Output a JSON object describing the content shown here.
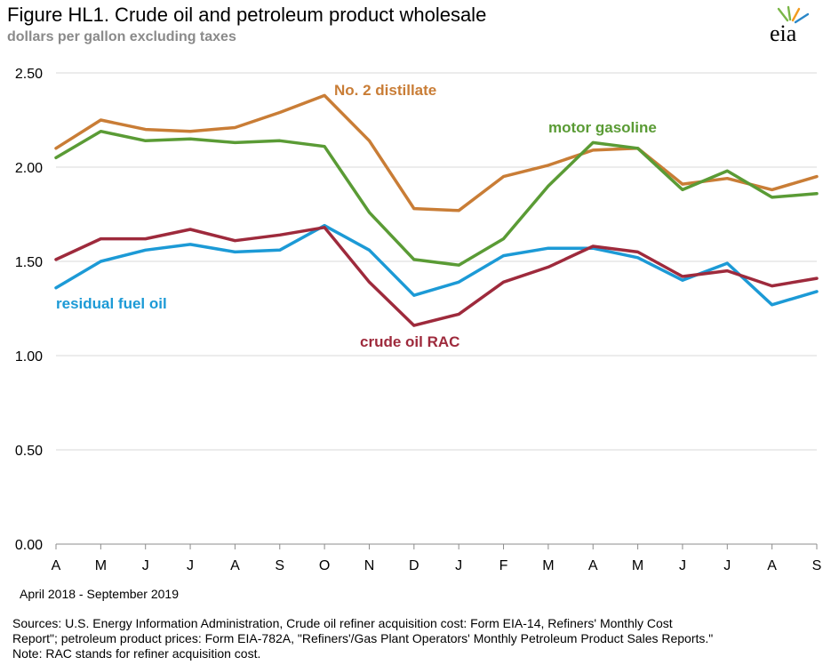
{
  "title": "Figure HL1.  Crude oil and petroleum product wholesale",
  "subtitle": "dollars per gallon excluding taxes",
  "logo_text": "eia",
  "period": "April 2018 - September 2019",
  "sources": [
    "Sources:  U.S. Energy Information Administration, Crude oil refiner acquisition cost:  Form EIA-14, Refiners' Monthly  Cost",
    "Report\"; petroleum product prices:  Form EIA-782A, \"Refiners'/Gas Plant Operators' Monthly  Petroleum Product Sales Reports.\"",
    "Note:  RAC stands for refiner acquisition cost."
  ],
  "colors": {
    "distillate": "#c97d36",
    "gasoline": "#5a9b35",
    "residual": "#1c9ad6",
    "crude": "#9e2a3c",
    "grid": "#d9d9d9",
    "axis": "#8c8c8c",
    "logo_green": "#7ab648",
    "logo_orange": "#f29c1f",
    "logo_blue": "#2a87c8"
  },
  "chart_data": {
    "type": "line",
    "title": "Figure HL1.  Crude oil and petroleum product wholesale",
    "ylabel": "dollars per gallon excluding taxes",
    "xlabel": "",
    "ylim": [
      0,
      2.5
    ],
    "yticks": [
      "0.00",
      "0.50",
      "1.00",
      "1.50",
      "2.00",
      "2.50"
    ],
    "categories": [
      "A",
      "M",
      "J",
      "J",
      "A",
      "S",
      "O",
      "N",
      "D",
      "J",
      "F",
      "M",
      "A",
      "M",
      "J",
      "J",
      "A",
      "S"
    ],
    "grid": true,
    "series": [
      {
        "name": "No. 2 distillate",
        "color_key": "distillate",
        "values": [
          2.1,
          2.25,
          2.2,
          2.19,
          2.21,
          2.29,
          2.38,
          2.14,
          1.78,
          1.77,
          1.95,
          2.01,
          2.09,
          2.1,
          1.91,
          1.94,
          1.88,
          1.95
        ]
      },
      {
        "name": "motor gasoline",
        "color_key": "gasoline",
        "values": [
          2.05,
          2.19,
          2.14,
          2.15,
          2.13,
          2.14,
          2.11,
          1.76,
          1.51,
          1.48,
          1.62,
          1.9,
          2.13,
          2.1,
          1.88,
          1.98,
          1.84,
          1.86
        ]
      },
      {
        "name": "residual fuel oil",
        "color_key": "residual",
        "values": [
          1.36,
          1.5,
          1.56,
          1.59,
          1.55,
          1.56,
          1.69,
          1.56,
          1.32,
          1.39,
          1.53,
          1.57,
          1.57,
          1.52,
          1.4,
          1.49,
          1.27,
          1.34
        ]
      },
      {
        "name": "crude oil RAC",
        "color_key": "crude",
        "values": [
          1.51,
          1.62,
          1.62,
          1.67,
          1.61,
          1.64,
          1.68,
          1.39,
          1.16,
          1.22,
          1.39,
          1.47,
          1.58,
          1.55,
          1.42,
          1.45,
          1.37,
          1.41
        ]
      }
    ]
  }
}
